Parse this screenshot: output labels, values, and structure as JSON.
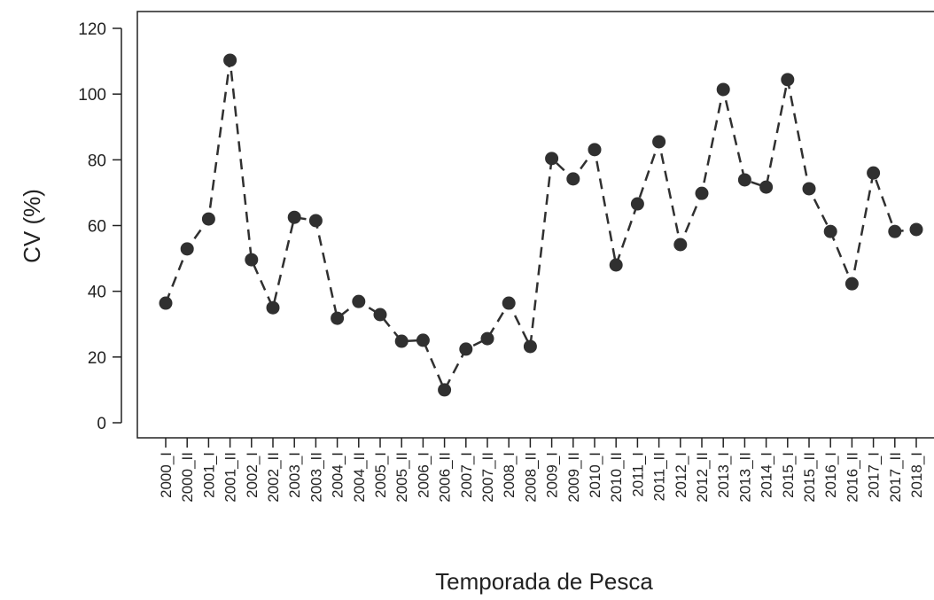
{
  "chart_data": {
    "type": "line",
    "xlabel": "Temporada de Pesca",
    "ylabel": "CV (%)",
    "categories": [
      "2000_I",
      "2000_II",
      "2001_I",
      "2001_II",
      "2002_I",
      "2002_II",
      "2003_I",
      "2003_II",
      "2004_I",
      "2004_II",
      "2005_I",
      "2005_II",
      "2006_I",
      "2006_II",
      "2007_I",
      "2007_II",
      "2008_I",
      "2008_II",
      "2009_I",
      "2009_II",
      "2010_I",
      "2010_II",
      "2011_I",
      "2011_II",
      "2012_I",
      "2012_II",
      "2013_I",
      "2013_II",
      "2014_I",
      "2015_I",
      "2015_II",
      "2016_I",
      "2016_II",
      "2017_I",
      "2017_II",
      "2018_I"
    ],
    "values": [
      36.4,
      52.9,
      62,
      110.3,
      49.6,
      35,
      62.5,
      61.5,
      31.8,
      36.9,
      32.9,
      24.8,
      25.1,
      10,
      22.4,
      25.6,
      36.4,
      23.2,
      80.4,
      74.2,
      83.1,
      48,
      66.6,
      85.5,
      54.2,
      69.8,
      101.4,
      73.9,
      71.7,
      104.4,
      71.2,
      58.2,
      42.3,
      76,
      58.2,
      58.8
    ],
    "color": "#303030",
    "ylim": [
      0,
      120
    ],
    "yticks": [
      0,
      20,
      40,
      60,
      80,
      100,
      120
    ]
  }
}
